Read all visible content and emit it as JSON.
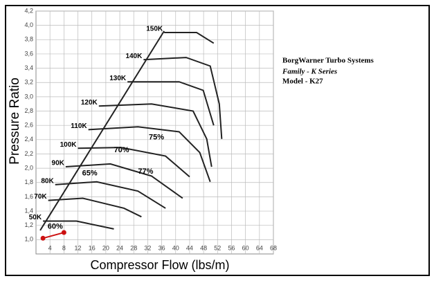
{
  "chart_data": {
    "type": "line",
    "x_label": "Compressor Flow (lbs/m)",
    "y_label": "Pressure Ratio",
    "xlim": [
      0,
      68
    ],
    "ylim": [
      0.8,
      4.2
    ],
    "xticks": [
      4,
      8,
      12,
      16,
      20,
      24,
      28,
      32,
      36,
      40,
      44,
      48,
      52,
      56,
      60,
      64,
      68
    ],
    "yticks": [
      {
        "value": 1.0,
        "label": "1,0"
      },
      {
        "value": 1.2,
        "label": "1,2"
      },
      {
        "value": 1.4,
        "label": "1,4"
      },
      {
        "value": 1.6,
        "label": "1,6"
      },
      {
        "value": 1.8,
        "label": "1,8"
      },
      {
        "value": 2.0,
        "label": "2,0"
      },
      {
        "value": 2.2,
        "label": "2,2"
      },
      {
        "value": 2.4,
        "label": "2,4"
      },
      {
        "value": 2.6,
        "label": "2,6"
      },
      {
        "value": 2.8,
        "label": "2,8"
      },
      {
        "value": 3.0,
        "label": "3,0"
      },
      {
        "value": 3.2,
        "label": "3,2"
      },
      {
        "value": 3.4,
        "label": "3,4"
      },
      {
        "value": 3.6,
        "label": "3,6"
      },
      {
        "value": 3.8,
        "label": "3,8"
      },
      {
        "value": 4.0,
        "label": "4,0"
      },
      {
        "value": 4.2,
        "label": "4,2"
      }
    ],
    "grid": true,
    "series": [
      {
        "color": "#222222",
        "x": [
          1.2,
          36.7
        ],
        "values": [
          1.13,
          3.92
        ]
      },
      {
        "name": "50K",
        "color": "#222222",
        "x": [
          2,
          11.6,
          22.3
        ],
        "values": [
          1.26,
          1.26,
          1.15
        ]
      },
      {
        "name": "70K",
        "color": "#222222",
        "x": [
          3.5,
          13.4,
          25.2,
          30.2
        ],
        "values": [
          1.55,
          1.58,
          1.44,
          1.32
        ]
      },
      {
        "name": "80K",
        "color": "#222222",
        "x": [
          5.5,
          17.4,
          29.2,
          37.1
        ],
        "values": [
          1.77,
          1.81,
          1.68,
          1.44
        ]
      },
      {
        "name": "90K",
        "color": "#222222",
        "x": [
          8.5,
          21.3,
          33.1,
          42
        ],
        "values": [
          2.02,
          2.06,
          1.89,
          1.58
        ]
      },
      {
        "name": "100K",
        "color": "#222222",
        "x": [
          12,
          24.3,
          37.1,
          44
        ],
        "values": [
          2.28,
          2.29,
          2.17,
          1.88
        ]
      },
      {
        "name": "110K",
        "color": "#222222",
        "x": [
          15,
          29.2,
          41,
          46.9,
          49.9
        ],
        "values": [
          2.54,
          2.58,
          2.51,
          2.22,
          1.81
        ]
      },
      {
        "name": "120K",
        "color": "#222222",
        "x": [
          18,
          33.1,
          45,
          48.9,
          50.3
        ],
        "values": [
          2.87,
          2.9,
          2.8,
          2.41,
          2.02
        ]
      },
      {
        "name": "130K",
        "color": "#222222",
        "x": [
          26.2,
          41,
          47.9,
          50.9
        ],
        "values": [
          3.21,
          3.21,
          3.09,
          2.6
        ]
      },
      {
        "name": "140K",
        "color": "#222222",
        "x": [
          30.8,
          43,
          49.9,
          52.5,
          53.2
        ],
        "values": [
          3.52,
          3.55,
          3.43,
          2.9,
          2.41
        ]
      },
      {
        "name": "150K",
        "color": "#222222",
        "x": [
          36.7,
          46,
          50.9
        ],
        "values": [
          3.9,
          3.9,
          3.75
        ]
      },
      {
        "color": "#cc1111",
        "marker": true,
        "x": [
          2,
          8
        ],
        "values": [
          1.02,
          1.1
        ]
      }
    ],
    "annotations": [
      {
        "text": "60%",
        "x": 5.5,
        "y": 1.18
      },
      {
        "text": "65%",
        "x": 15.4,
        "y": 1.93
      },
      {
        "text": "70%",
        "x": 24.5,
        "y": 2.25
      },
      {
        "text": "75%",
        "x": 34.5,
        "y": 2.43
      },
      {
        "text": "77%",
        "x": 31.4,
        "y": 1.95
      }
    ]
  },
  "info": {
    "lines": [
      "BorgWarner Turbo Systems",
      "Family - K Series",
      "Model - K27"
    ]
  }
}
